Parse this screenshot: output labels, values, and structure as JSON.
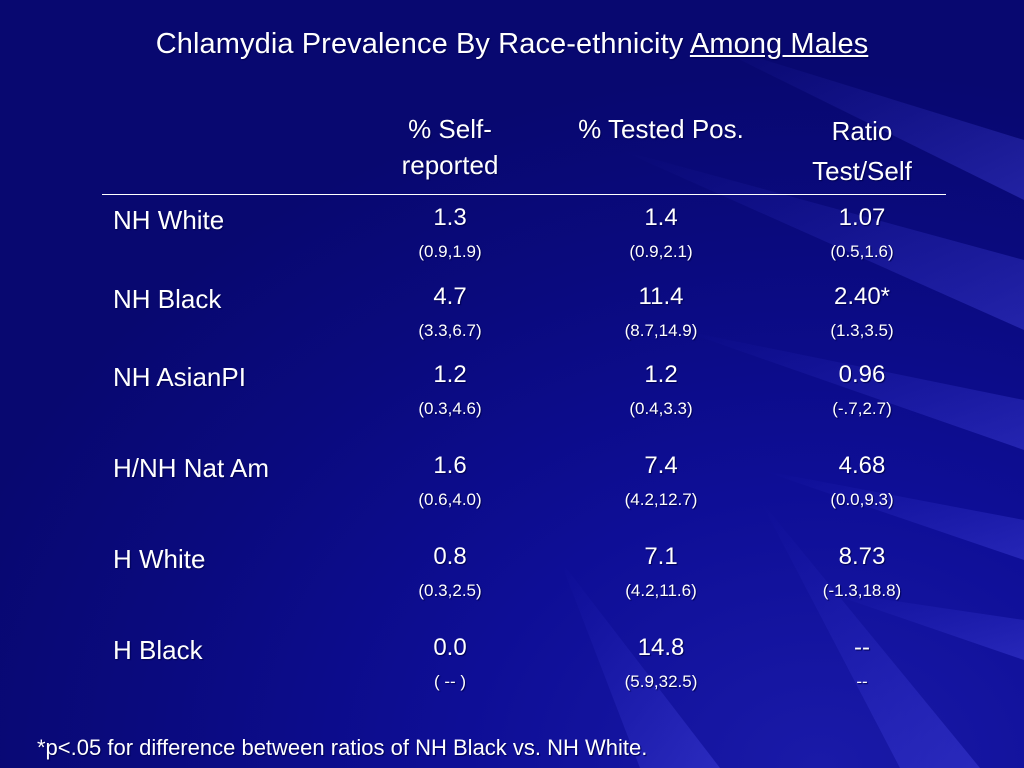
{
  "title": {
    "main": "Chlamydia Prevalence By Race-ethnicity ",
    "underlined": "Among Males"
  },
  "headers": {
    "self_line1": "% Self-",
    "self_line2": "reported",
    "tested": "% Tested Pos.",
    "ratio_line1": "Ratio",
    "ratio_line2": "Test/Self"
  },
  "rows": [
    {
      "label": "NH White",
      "self": "1.3",
      "self_ci": "(0.9,1.9)",
      "tested": "1.4",
      "tested_ci": "(0.9,2.1)",
      "ratio": "1.07",
      "ratio_ci": "(0.5,1.6)"
    },
    {
      "label": "NH Black",
      "self": "4.7",
      "self_ci": "(3.3,6.7)",
      "tested": "11.4",
      "tested_ci": "(8.7,14.9)",
      "ratio": "2.40*",
      "ratio_ci": "(1.3,3.5)"
    },
    {
      "label": "NH AsianPI",
      "self": "1.2",
      "self_ci": "(0.3,4.6)",
      "tested": "1.2",
      "tested_ci": "(0.4,3.3)",
      "ratio": "0.96",
      "ratio_ci": "(-.7,2.7)"
    },
    {
      "label": "H/NH Nat Am",
      "self": "1.6",
      "self_ci": "(0.6,4.0)",
      "tested": "7.4",
      "tested_ci": "(4.2,12.7)",
      "ratio": "4.68",
      "ratio_ci": "(0.0,9.3)"
    },
    {
      "label": "H White",
      "self": "0.8",
      "self_ci": "(0.3,2.5)",
      "tested": "7.1",
      "tested_ci": "(4.2,11.6)",
      "ratio": "8.73",
      "ratio_ci": "(-1.3,18.8)"
    },
    {
      "label": "H Black",
      "self": "0.0",
      "self_ci": "( -- )",
      "tested": "14.8",
      "tested_ci": "(5.9,32.5)",
      "ratio": "--",
      "ratio_ci": "--"
    }
  ],
  "footnote": "*p<.05 for difference between ratios of NH Black vs. NH White.",
  "colors": {
    "background": "#0c0c8a",
    "text": "#ffffff"
  }
}
